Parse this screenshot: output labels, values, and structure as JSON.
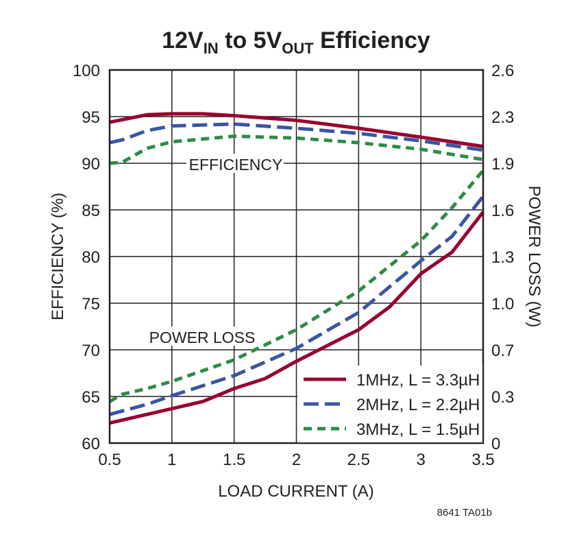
{
  "chart_data": {
    "type": "line",
    "title": {
      "parts": [
        "12V",
        "IN",
        " to 5V",
        "OUT",
        " Efficiency"
      ]
    },
    "xlabel": "LOAD CURRENT (A)",
    "ylabel": "EFFICIENCY (%)",
    "y2label": "POWER LOSS (W)",
    "xlim": [
      0.5,
      3.5
    ],
    "ylim": [
      60,
      100
    ],
    "y2lim": [
      0,
      2.6
    ],
    "xticks": [
      "0.5",
      "1",
      "1.5",
      "2",
      "2.5",
      "3",
      "3.5"
    ],
    "yticks": [
      "60",
      "65",
      "70",
      "75",
      "80",
      "85",
      "90",
      "95",
      "100"
    ],
    "y2ticks": [
      "0",
      "0.3",
      "0.7",
      "1.0",
      "1.3",
      "1.6",
      "1.9",
      "2.3",
      "2.6"
    ],
    "grid": true,
    "legend_position": "bottom-right",
    "annotations": [
      "EFFICIENCY",
      "POWER LOSS"
    ],
    "footnote": "8641 TA01b",
    "series": [
      {
        "name": "1MHz, L = 3.3µH",
        "color": "#98002e",
        "dash": "solid",
        "efficiency": {
          "x": [
            0.5,
            0.8,
            1.0,
            1.25,
            1.5,
            2.0,
            2.5,
            3.0,
            3.5
          ],
          "y": [
            94.4,
            95.2,
            95.3,
            95.3,
            95.1,
            94.6,
            93.75,
            92.8,
            91.8
          ]
        },
        "power_loss": {
          "x": [
            0.5,
            0.8,
            1.0,
            1.25,
            1.5,
            1.75,
            2.0,
            2.25,
            2.5,
            2.75,
            3.0,
            3.25,
            3.5
          ],
          "y": [
            0.14,
            0.2,
            0.24,
            0.29,
            0.38,
            0.45,
            0.57,
            0.68,
            0.79,
            0.95,
            1.18,
            1.33,
            1.61
          ]
        }
      },
      {
        "name": "2MHz, L = 2.2µH",
        "color": "#3a55a4",
        "dash": "long",
        "efficiency": {
          "x": [
            0.5,
            0.6,
            0.8,
            1.0,
            1.5,
            2.0,
            2.5,
            3.0,
            3.5
          ],
          "y": [
            92.2,
            92.5,
            93.5,
            94.0,
            94.2,
            93.75,
            93.2,
            92.4,
            91.4
          ]
        },
        "power_loss": {
          "x": [
            0.5,
            0.8,
            1.0,
            1.5,
            2.0,
            2.5,
            3.0,
            3.25,
            3.5
          ],
          "y": [
            0.2,
            0.27,
            0.33,
            0.47,
            0.66,
            0.91,
            1.27,
            1.44,
            1.72
          ]
        }
      },
      {
        "name": "3MHz, L = 1.5µH",
        "color": "#2e8b46",
        "dash": "short",
        "efficiency": {
          "x": [
            0.5,
            0.6,
            0.8,
            1.0,
            1.5,
            2.0,
            2.5,
            3.0,
            3.5
          ],
          "y": [
            90.0,
            90.1,
            91.6,
            92.3,
            92.9,
            92.7,
            92.2,
            91.5,
            90.4
          ]
        },
        "power_loss": {
          "x": [
            0.5,
            0.6,
            0.8,
            1.0,
            1.5,
            2.0,
            2.5,
            3.0,
            3.25,
            3.5
          ],
          "y": [
            0.29,
            0.34,
            0.38,
            0.43,
            0.58,
            0.79,
            1.06,
            1.41,
            1.64,
            1.9
          ]
        }
      }
    ]
  }
}
